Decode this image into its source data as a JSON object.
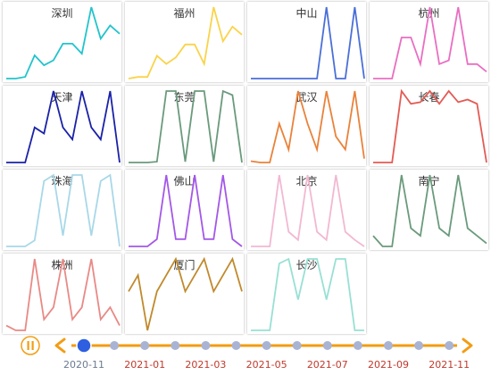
{
  "chart_data": {
    "type": "line",
    "title": "",
    "series": [
      {
        "name": "深圳",
        "color": "#22c4cc",
        "values": [
          1,
          1,
          2,
          15,
          9,
          12,
          22,
          22,
          16,
          44,
          25,
          33,
          28
        ]
      },
      {
        "name": "福州",
        "color": "#fad34a",
        "values": [
          1,
          2,
          2,
          15,
          10,
          14,
          22,
          22,
          10,
          45,
          24,
          33,
          28
        ]
      },
      {
        "name": "中山",
        "color": "#4a6fd8",
        "values": [
          1,
          1,
          1,
          1,
          1,
          1,
          1,
          1,
          80,
          1,
          1,
          80,
          1
        ]
      },
      {
        "name": "杭州",
        "color": "#e96ec2",
        "values": [
          1,
          1,
          1,
          55,
          55,
          20,
          95,
          20,
          25,
          95,
          20,
          20,
          10
        ]
      },
      {
        "name": "天津",
        "color": "#1a22a8",
        "values": [
          1,
          1,
          1,
          30,
          25,
          60,
          30,
          20,
          60,
          30,
          20,
          60,
          1
        ]
      },
      {
        "name": "东莞",
        "color": "#6a9a7c",
        "values": [
          1,
          1,
          1,
          2,
          90,
          90,
          2,
          90,
          90,
          2,
          90,
          85,
          1
        ]
      },
      {
        "name": "武汉",
        "color": "#e9823a",
        "values": [
          1,
          0,
          0,
          30,
          10,
          55,
          30,
          10,
          55,
          20,
          10,
          55,
          3
        ]
      },
      {
        "name": "长春",
        "color": "#e35b55",
        "values": [
          1,
          1,
          1,
          85,
          70,
          72,
          85,
          70,
          85,
          72,
          75,
          70,
          1
        ]
      },
      {
        "name": "珠海",
        "color": "#a8d8e8",
        "values": [
          1,
          1,
          1,
          6,
          55,
          60,
          10,
          60,
          60,
          10,
          55,
          60,
          1
        ]
      },
      {
        "name": "佛山",
        "color": "#a357e8",
        "values": [
          1,
          1,
          1,
          8,
          70,
          8,
          8,
          70,
          8,
          8,
          70,
          8,
          1
        ]
      },
      {
        "name": "北京",
        "color": "#f2b8d2",
        "values": [
          1,
          1,
          1,
          45,
          10,
          5,
          45,
          10,
          5,
          45,
          10,
          5,
          1
        ]
      },
      {
        "name": "南宁",
        "color": "#6a9a7c",
        "values": [
          15,
          1,
          1,
          95,
          25,
          15,
          95,
          25,
          15,
          95,
          25,
          15,
          5
        ]
      },
      {
        "name": "株洲",
        "color": "#e88a86",
        "values": [
          5,
          1,
          1,
          60,
          10,
          20,
          60,
          10,
          20,
          60,
          10,
          20,
          5
        ]
      },
      {
        "name": "厦门",
        "color": "#c08a2c",
        "values": [
          25,
          35,
          1,
          25,
          35,
          45,
          25,
          35,
          45,
          25,
          35,
          45,
          25
        ]
      },
      {
        "name": "长沙",
        "color": "#98e0d4",
        "values": [
          1,
          1,
          1,
          75,
          80,
          35,
          80,
          80,
          35,
          80,
          80,
          1,
          1
        ]
      }
    ]
  },
  "timeline": {
    "labels": [
      "2020-11",
      "2021-01",
      "2021-03",
      "2021-05",
      "2021-07",
      "2021-09",
      "2021-11"
    ],
    "tick_count": 13,
    "current_index": 0,
    "accent_color": "#f39c12",
    "label_current_color": "#6b7a8f",
    "label_other_color": "#c0392b",
    "play_icon": "pause-icon"
  }
}
